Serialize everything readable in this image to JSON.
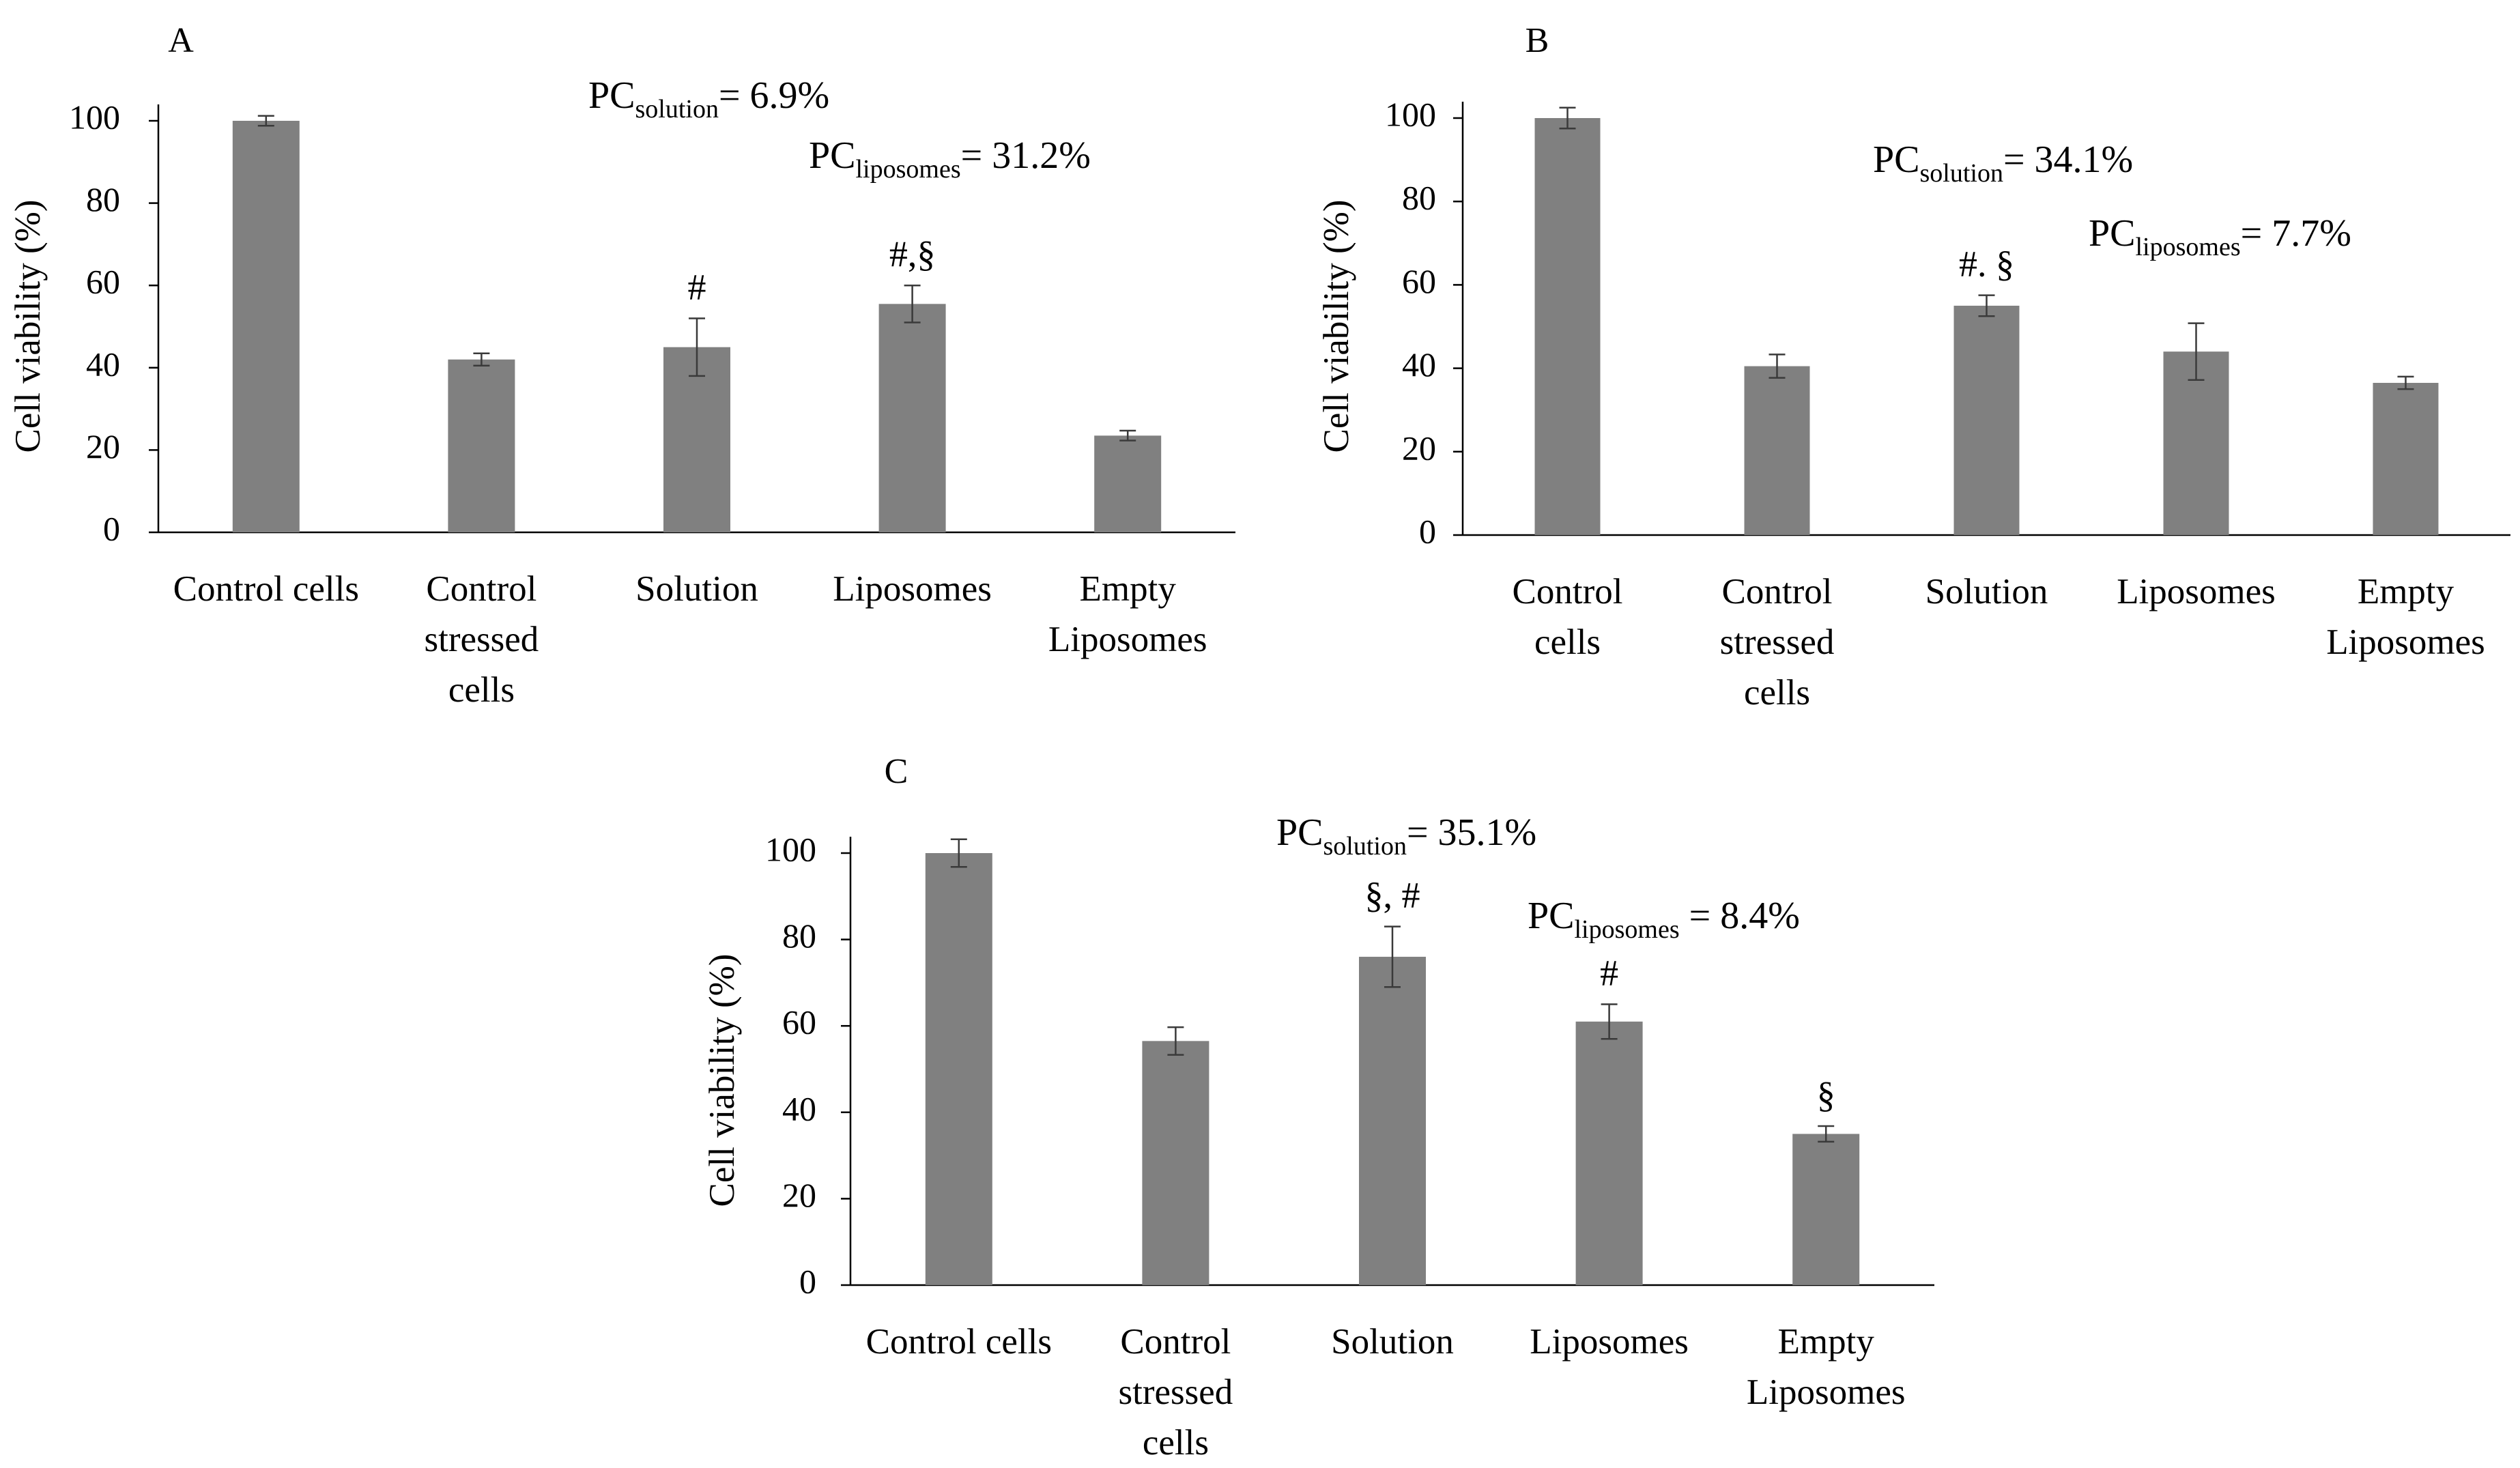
{
  "figure_colors": {
    "bar": "#808080",
    "axis": "#000000",
    "text": "#000000"
  },
  "chart_data": [
    {
      "panel": "A",
      "type": "bar",
      "title": "A",
      "ylabel": "Cell viability (%)",
      "xlabel": "",
      "ylim": [
        0,
        100
      ],
      "yticks": [
        "0",
        "20",
        "40",
        "60",
        "80",
        "100"
      ],
      "categories": [
        [
          "Control cells"
        ],
        [
          "Control",
          "stressed",
          "cells"
        ],
        [
          "Solution"
        ],
        [
          "Liposomes"
        ],
        [
          "Empty",
          "Liposomes"
        ]
      ],
      "values": [
        100,
        42,
        45,
        55.5,
        23.5
      ],
      "errors": [
        1.2,
        1.5,
        7,
        4.5,
        1.2
      ],
      "markers": [
        "",
        "",
        "#",
        "#,§",
        ""
      ],
      "pc_labels": [
        {
          "prefix": "PC",
          "sub": "solution",
          "suffix": "= 6.9%"
        },
        {
          "prefix": "PC",
          "sub": "liposomes",
          "suffix": "= 31.2%"
        }
      ]
    },
    {
      "panel": "B",
      "type": "bar",
      "title": "B",
      "ylabel": "Cell viability (%)",
      "xlabel": "",
      "ylim": [
        0,
        100
      ],
      "yticks": [
        "0",
        "20",
        "40",
        "60",
        "80",
        "100"
      ],
      "categories": [
        [
          "Control",
          "cells"
        ],
        [
          "Control",
          "stressed",
          "cells"
        ],
        [
          "Solution"
        ],
        [
          "Liposomes"
        ],
        [
          "Empty",
          "Liposomes"
        ]
      ],
      "values": [
        100,
        40.5,
        55,
        44,
        36.5
      ],
      "errors": [
        2.5,
        2.8,
        2.5,
        6.8,
        1.5
      ],
      "markers": [
        "",
        "",
        "#. §",
        "",
        ""
      ],
      "pc_labels": [
        {
          "prefix": "PC",
          "sub": "solution",
          "suffix": "= 34.1%"
        },
        {
          "prefix": "PC",
          "sub": "liposomes",
          "suffix": "= 7.7%"
        }
      ]
    },
    {
      "panel": "C",
      "type": "bar",
      "title": "C",
      "ylabel": "Cell viability (%)",
      "xlabel": "",
      "ylim": [
        0,
        100
      ],
      "yticks": [
        "0",
        "20",
        "40",
        "60",
        "80",
        "100"
      ],
      "categories": [
        [
          "Control cells"
        ],
        [
          "Control",
          "stressed",
          "cells"
        ],
        [
          "Solution"
        ],
        [
          "Liposomes"
        ],
        [
          "Empty",
          "Liposomes"
        ]
      ],
      "values": [
        100,
        56.5,
        76,
        61,
        35
      ],
      "errors": [
        3.2,
        3.2,
        7,
        4,
        1.8
      ],
      "markers": [
        "",
        "",
        "§, #",
        "#",
        "§"
      ],
      "pc_labels": [
        {
          "prefix": "PC",
          "sub": "solution",
          "suffix": "= 35.1%"
        },
        {
          "prefix": "PC",
          "sub": "liposomes",
          "suffix": " = 8.4%"
        }
      ]
    }
  ]
}
